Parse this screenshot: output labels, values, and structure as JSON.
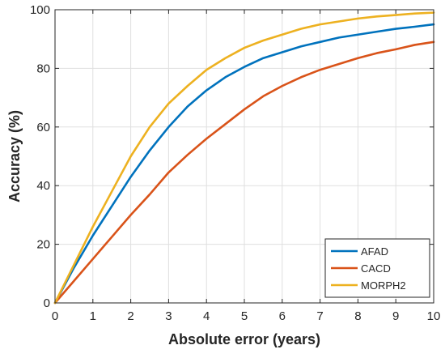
{
  "chart_data": {
    "type": "line",
    "title": "",
    "xlabel": "Absolute error (years)",
    "ylabel": "Accuracy (%)",
    "xlim": [
      0,
      10
    ],
    "ylim": [
      0,
      100
    ],
    "xticks": [
      "0",
      "1",
      "2",
      "3",
      "4",
      "5",
      "6",
      "7",
      "8",
      "9",
      "10"
    ],
    "yticks": [
      "0",
      "20",
      "40",
      "60",
      "80",
      "100"
    ],
    "grid": true,
    "legend_position": "bottom-right",
    "x": [
      0,
      0.5,
      1,
      1.5,
      2,
      2.5,
      3,
      3.5,
      4,
      4.5,
      5,
      5.5,
      6,
      6.5,
      7,
      7.5,
      8,
      8.5,
      9,
      9.5,
      10
    ],
    "series": [
      {
        "name": "AFAD",
        "color": "#0072BD",
        "values": [
          0,
          12,
          23,
          33,
          43,
          52,
          60,
          67,
          72.5,
          77,
          80.5,
          83.5,
          85.5,
          87.5,
          89,
          90.5,
          91.5,
          92.5,
          93.5,
          94.2,
          95
        ]
      },
      {
        "name": "CACD",
        "color": "#D95319",
        "values": [
          0,
          7.5,
          15,
          22.5,
          30,
          37,
          44.5,
          50.5,
          56,
          61,
          66,
          70.5,
          74,
          77,
          79.5,
          81.5,
          83.5,
          85.2,
          86.5,
          88,
          89
        ]
      },
      {
        "name": "MORPH2",
        "color": "#EDB120",
        "values": [
          0,
          13,
          26,
          38,
          50,
          60,
          68,
          74,
          79.5,
          83.5,
          87,
          89.5,
          91.5,
          93.5,
          95,
          96,
          97,
          97.7,
          98.2,
          98.7,
          99
        ]
      }
    ]
  }
}
